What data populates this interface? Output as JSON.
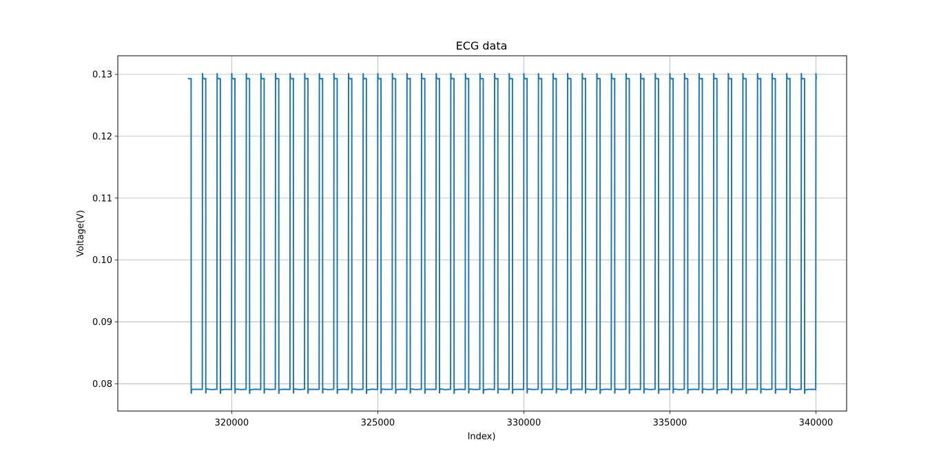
{
  "chart_data": {
    "type": "line",
    "title": "ECG data",
    "xlabel": "Index)",
    "ylabel": "Voltage(V)",
    "xlim": [
      316100,
      341050
    ],
    "ylim": [
      0.0756,
      0.133
    ],
    "x_ticks": [
      320000,
      325000,
      330000,
      335000,
      340000
    ],
    "x_tick_labels": [
      "320000",
      "325000",
      "330000",
      "335000",
      "340000"
    ],
    "y_ticks": [
      0.08,
      0.09,
      0.1,
      0.11,
      0.12,
      0.13
    ],
    "y_tick_labels": [
      "0.08",
      "0.09",
      "0.10",
      "0.11",
      "0.12",
      "0.13"
    ],
    "grid": true,
    "legend": "none",
    "line_color": "#1f77b4",
    "series": [
      {
        "x_start": 318500,
        "x_end": 340000,
        "cycles": 43,
        "high_level": 0.1293,
        "low_level": 0.0791,
        "spike_high": 0.1302,
        "spike_low": 0.0784
      }
    ]
  }
}
